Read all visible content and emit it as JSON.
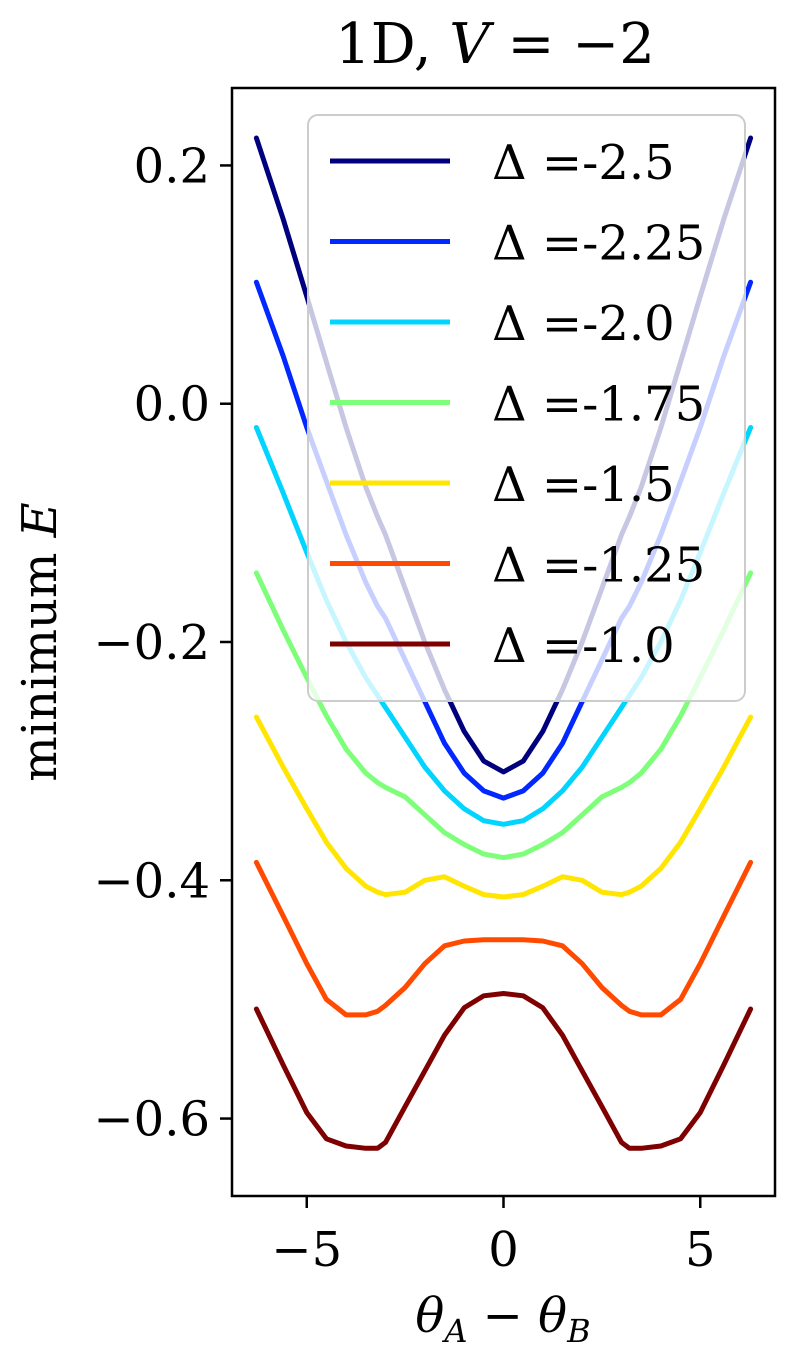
{
  "chart_data": {
    "type": "line",
    "title": "1D, V = −2",
    "xlabel": "θA − θB",
    "ylabel": "minimum E",
    "xlim": [
      -6.9,
      6.9
    ],
    "ylim": [
      -0.665,
      0.265
    ],
    "x_ticks": [
      -5,
      0,
      5
    ],
    "x_tick_labels": [
      "−5",
      "0",
      "5"
    ],
    "y_ticks": [
      0.2,
      0.0,
      -0.2,
      -0.4,
      -0.6
    ],
    "y_tick_labels": [
      "0.2",
      "0.0",
      "−0.2",
      "−0.4",
      "−0.6"
    ],
    "grid": false,
    "legend_position": "top-right",
    "x": [
      -6.28,
      -5.6,
      -5.0,
      -4.5,
      -4.0,
      -3.5,
      -3.2,
      -3.0,
      -2.5,
      -2.0,
      -1.5,
      -1.0,
      -0.5,
      0.0,
      0.5,
      1.0,
      1.5,
      2.0,
      2.5,
      3.0,
      3.2,
      3.5,
      4.0,
      4.5,
      5.0,
      5.6,
      6.28
    ],
    "series": [
      {
        "name": "Δ =-2.5",
        "color": "#00007f",
        "values": [
          0.223,
          0.155,
          0.09,
          0.035,
          -0.02,
          -0.07,
          -0.095,
          -0.11,
          -0.155,
          -0.2,
          -0.24,
          -0.275,
          -0.3,
          -0.309,
          -0.3,
          -0.275,
          -0.24,
          -0.2,
          -0.155,
          -0.11,
          -0.095,
          -0.07,
          -0.02,
          0.035,
          0.09,
          0.155,
          0.223
        ]
      },
      {
        "name": "Δ =-2.25",
        "color": "#0028ff",
        "values": [
          0.102,
          0.04,
          -0.02,
          -0.065,
          -0.11,
          -0.15,
          -0.17,
          -0.18,
          -0.215,
          -0.25,
          -0.285,
          -0.31,
          -0.325,
          -0.331,
          -0.325,
          -0.31,
          -0.285,
          -0.25,
          -0.215,
          -0.18,
          -0.17,
          -0.15,
          -0.11,
          -0.065,
          -0.02,
          0.04,
          0.102
        ]
      },
      {
        "name": "Δ =-2.0",
        "color": "#00d4ff",
        "values": [
          -0.02,
          -0.075,
          -0.125,
          -0.165,
          -0.2,
          -0.23,
          -0.245,
          -0.255,
          -0.28,
          -0.305,
          -0.325,
          -0.34,
          -0.35,
          -0.353,
          -0.35,
          -0.34,
          -0.325,
          -0.305,
          -0.28,
          -0.255,
          -0.245,
          -0.23,
          -0.2,
          -0.165,
          -0.125,
          -0.075,
          -0.02
        ]
      },
      {
        "name": "Δ =-1.75",
        "color": "#7dff7a",
        "values": [
          -0.142,
          -0.19,
          -0.23,
          -0.262,
          -0.29,
          -0.31,
          -0.318,
          -0.322,
          -0.33,
          -0.345,
          -0.36,
          -0.37,
          -0.378,
          -0.381,
          -0.378,
          -0.37,
          -0.36,
          -0.345,
          -0.33,
          -0.322,
          -0.318,
          -0.31,
          -0.29,
          -0.262,
          -0.23,
          -0.19,
          -0.142
        ]
      },
      {
        "name": "Δ =-1.5",
        "color": "#ffe500",
        "values": [
          -0.263,
          -0.305,
          -0.34,
          -0.368,
          -0.39,
          -0.405,
          -0.41,
          -0.412,
          -0.41,
          -0.4,
          -0.397,
          -0.405,
          -0.412,
          -0.414,
          -0.412,
          -0.405,
          -0.397,
          -0.4,
          -0.41,
          -0.412,
          -0.41,
          -0.405,
          -0.39,
          -0.368,
          -0.34,
          -0.305,
          -0.263
        ]
      },
      {
        "name": "Δ =-1.25",
        "color": "#ff4a00",
        "values": [
          -0.385,
          -0.43,
          -0.47,
          -0.5,
          -0.513,
          -0.513,
          -0.51,
          -0.505,
          -0.49,
          -0.47,
          -0.455,
          -0.451,
          -0.45,
          -0.45,
          -0.45,
          -0.451,
          -0.455,
          -0.47,
          -0.49,
          -0.505,
          -0.51,
          -0.513,
          -0.513,
          -0.5,
          -0.47,
          -0.43,
          -0.385
        ]
      },
      {
        "name": "Δ =-1.0",
        "color": "#7f0000",
        "values": [
          -0.508,
          -0.555,
          -0.595,
          -0.617,
          -0.623,
          -0.625,
          -0.625,
          -0.62,
          -0.59,
          -0.56,
          -0.53,
          -0.507,
          -0.497,
          -0.495,
          -0.497,
          -0.507,
          -0.53,
          -0.56,
          -0.59,
          -0.62,
          -0.625,
          -0.625,
          -0.623,
          -0.617,
          -0.595,
          -0.555,
          -0.508
        ]
      }
    ]
  }
}
